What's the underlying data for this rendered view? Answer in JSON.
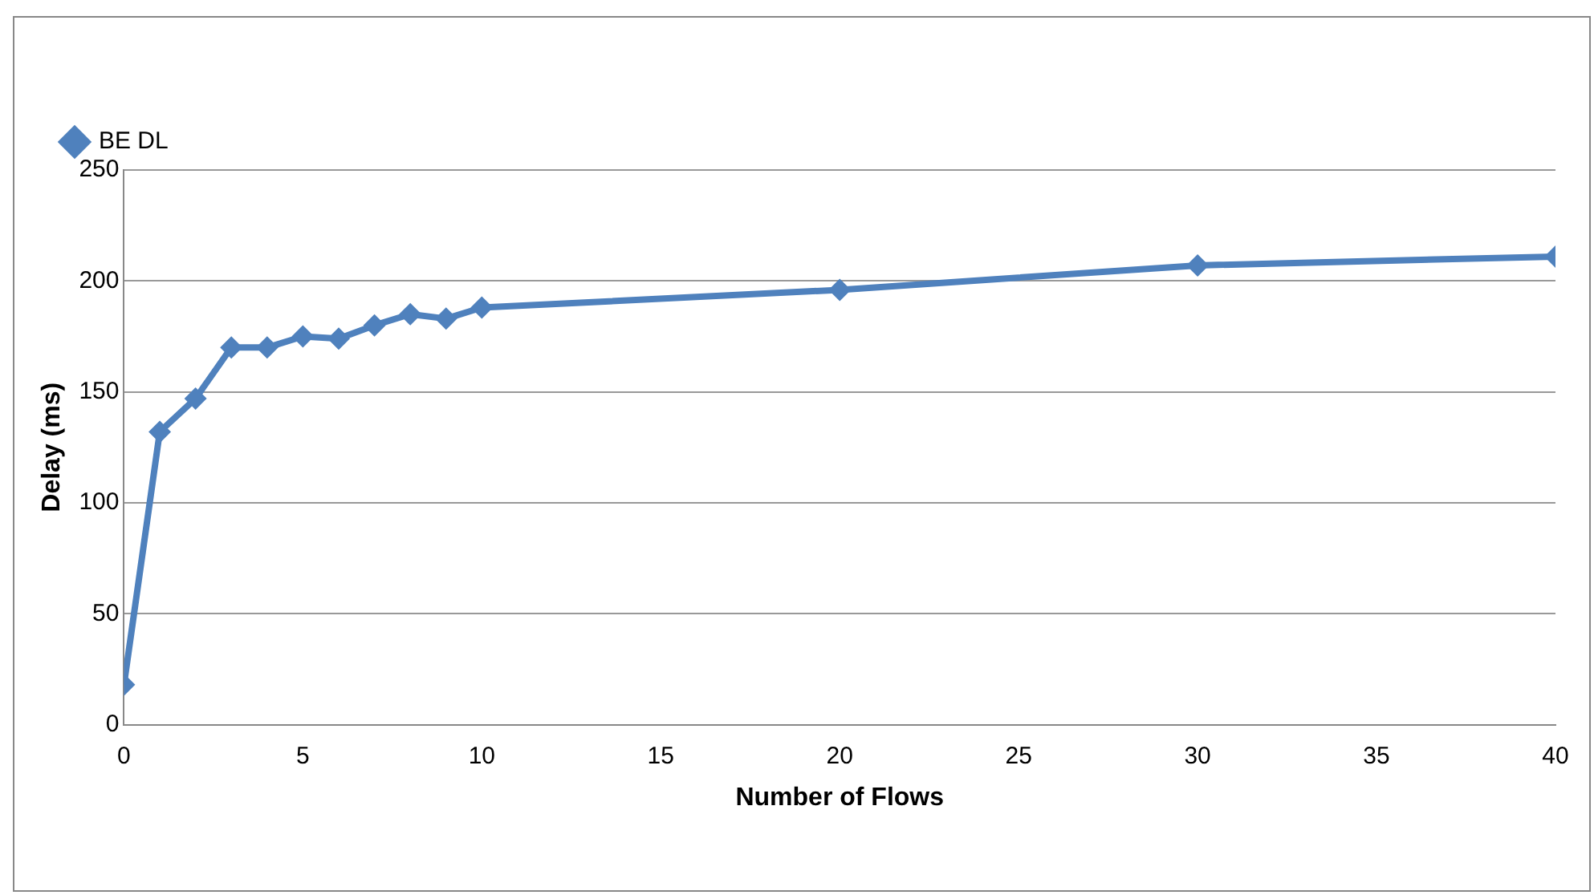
{
  "chart_data": {
    "type": "line",
    "xlabel": "Number of Flows",
    "ylabel": "Delay (ms)",
    "x": [
      0,
      1,
      2,
      3,
      4,
      5,
      6,
      7,
      8,
      9,
      10,
      20,
      30,
      40
    ],
    "series": [
      {
        "name": "BE DL",
        "color": "#4f81bd",
        "values": [
          18,
          132,
          147,
          170,
          170,
          175,
          174,
          180,
          185,
          183,
          188,
          196,
          207,
          211
        ]
      }
    ],
    "xlim": [
      0,
      40
    ],
    "xticks": [
      0,
      5,
      10,
      15,
      20,
      25,
      30,
      35,
      40
    ],
    "ylim": [
      0,
      250
    ],
    "yticks": [
      0,
      50,
      100,
      150,
      200,
      250
    ],
    "grid": "y",
    "legend": "top left",
    "marker": "diamond",
    "line_style": "solid"
  }
}
